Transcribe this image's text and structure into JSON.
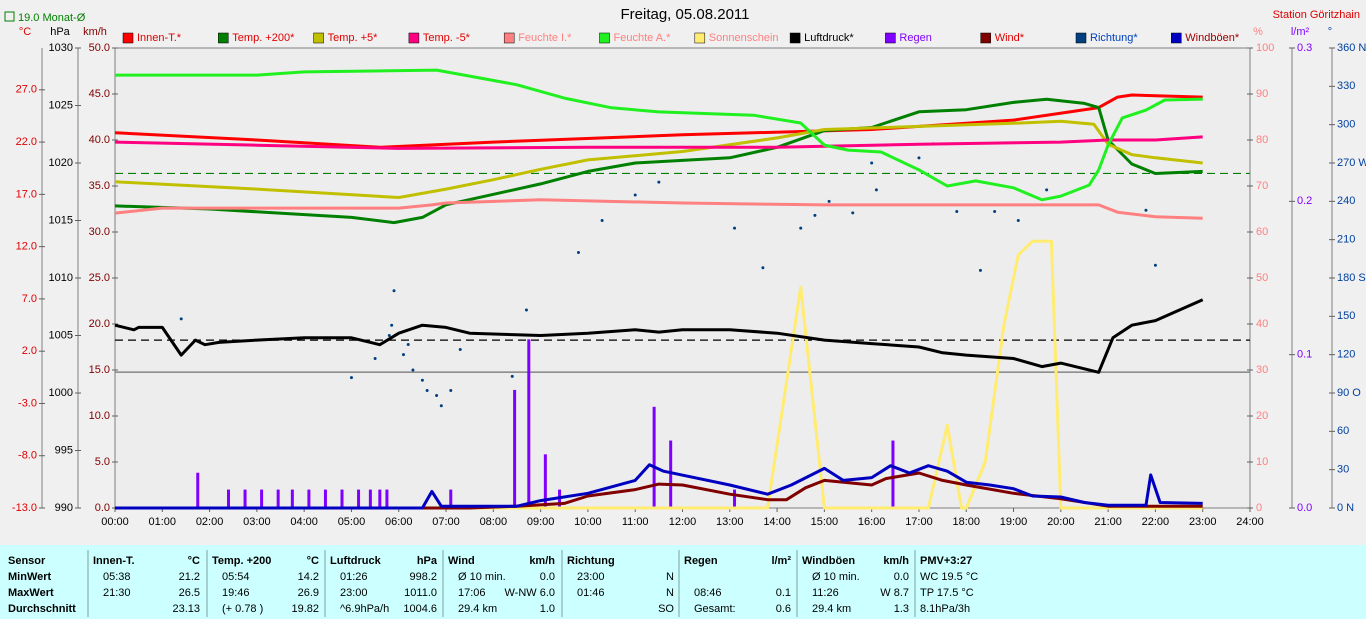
{
  "chart_data": {
    "type": "line",
    "title": "Freitag, 05.08.2011",
    "station": "Station Göritzhain",
    "xlim": [
      0,
      24
    ],
    "xticks": [
      {
        "value": 0,
        "label": "00:00"
      },
      {
        "value": 1,
        "label": "01:00"
      },
      {
        "value": 2,
        "label": "02:00"
      },
      {
        "value": 3,
        "label": "03:00"
      },
      {
        "value": 4,
        "label": "04:00"
      },
      {
        "value": 5,
        "label": "05:00"
      },
      {
        "value": 6,
        "label": "06:00"
      },
      {
        "value": 7,
        "label": "07:00"
      },
      {
        "value": 8,
        "label": "08:00"
      },
      {
        "value": 9,
        "label": "09:00"
      },
      {
        "value": 10,
        "label": "10:00"
      },
      {
        "value": 11,
        "label": "11:00"
      },
      {
        "value": 12,
        "label": "12:00"
      },
      {
        "value": 13,
        "label": "13:00"
      },
      {
        "value": 14,
        "label": "14:00"
      },
      {
        "value": 15,
        "label": "15:00"
      },
      {
        "value": 16,
        "label": "16:00"
      },
      {
        "value": 17,
        "label": "17:00"
      },
      {
        "value": 18,
        "label": "18:00"
      },
      {
        "value": 19,
        "label": "19:00"
      },
      {
        "value": 20,
        "label": "20:00"
      },
      {
        "value": 21,
        "label": "21:00"
      },
      {
        "value": 22,
        "label": "22:00"
      },
      {
        "value": 23,
        "label": "23:00"
      },
      {
        "value": 24,
        "label": "24:00"
      }
    ],
    "axes": [
      {
        "id": "temp",
        "label": "°C",
        "color": "#e00000",
        "lim": [
          -13,
          31
        ],
        "ticks": [
          {
            "value": -13,
            "label": "-13.0"
          },
          {
            "value": -8,
            "label": "-8.0"
          },
          {
            "value": -3,
            "label": "-3.0"
          },
          {
            "value": 2,
            "label": "2.0"
          },
          {
            "value": 7,
            "label": "7.0"
          },
          {
            "value": 12,
            "label": "12.0"
          },
          {
            "value": 17,
            "label": "17.0"
          },
          {
            "value": 22,
            "label": "22.0"
          },
          {
            "value": 27,
            "label": "27.0"
          }
        ]
      },
      {
        "id": "press",
        "label": "hPa",
        "color": "#000000",
        "lim": [
          990,
          1030
        ],
        "ticks": [
          990,
          995,
          1000,
          1005,
          1010,
          1015,
          1020,
          1025,
          1030
        ]
      },
      {
        "id": "wind",
        "label": "km/h",
        "color": "#800000",
        "lim": [
          0,
          50
        ],
        "ticks": [
          {
            "value": 0,
            "label": "0.0"
          },
          {
            "value": 5,
            "label": "5.0"
          },
          {
            "value": 10,
            "label": "10.0"
          },
          {
            "value": 15,
            "label": "15.0"
          },
          {
            "value": 20,
            "label": "20.0"
          },
          {
            "value": 25,
            "label": "25.0"
          },
          {
            "value": 30,
            "label": "30.0"
          },
          {
            "value": 35,
            "label": "35.0"
          },
          {
            "value": 40,
            "label": "40.0"
          },
          {
            "value": 45,
            "label": "45.0"
          },
          {
            "value": 50,
            "label": "50.0"
          }
        ]
      },
      {
        "id": "pct",
        "label": "%",
        "color": "#ff8080",
        "lim": [
          0,
          100
        ],
        "ticks": [
          0,
          10,
          20,
          30,
          40,
          50,
          60,
          70,
          80,
          90,
          100
        ]
      },
      {
        "id": "rain",
        "label": "l/m²",
        "color": "#8000ff",
        "lim": [
          0,
          0.3
        ],
        "ticks": [
          {
            "value": 0,
            "label": "0.0"
          },
          0.1,
          0.2,
          0.3
        ]
      },
      {
        "id": "dir",
        "label": "°",
        "color": "#0040a0",
        "lim": [
          0,
          360
        ],
        "ticks": [
          {
            "value": 0,
            "label": "0 N"
          },
          30,
          60,
          {
            "value": 90,
            "label": "90 O"
          },
          120,
          150,
          {
            "value": 180,
            "label": "180 S"
          },
          210,
          240,
          {
            "value": 270,
            "label": "270 W"
          },
          300,
          330,
          {
            "value": 360,
            "label": "360 N"
          }
        ]
      }
    ],
    "reference_lines": [
      {
        "value": 19.0,
        "axis": "temp",
        "color": "#008000",
        "dash": true,
        "label": "19.0 Monat-Ø"
      },
      {
        "value": 1004.6,
        "axis": "press",
        "color": "#000000",
        "dash": true
      },
      {
        "value": 0,
        "axis": "temp",
        "color": "#707070",
        "dash": false
      }
    ],
    "series": [
      {
        "name": "Innen-T.*",
        "type": "line",
        "axis": "temp",
        "color": "#ff0000",
        "label_color": "#e00000",
        "x": [
          0,
          3,
          5.6,
          8,
          12,
          16,
          19,
          20.8,
          21.2,
          21.5,
          23
        ],
        "values": [
          22.9,
          22.2,
          21.5,
          22.0,
          22.7,
          23.2,
          24.1,
          25.3,
          26.3,
          26.5,
          26.3
        ]
      },
      {
        "name": "Temp. +200*",
        "type": "line",
        "axis": "temp",
        "color": "#008000",
        "label_color": "#e00000",
        "x": [
          0,
          2,
          5,
          5.9,
          6.5,
          7,
          9,
          10,
          11,
          13,
          14,
          15,
          16,
          17,
          18,
          19,
          19.7,
          20.5,
          20.8,
          21,
          21.5,
          22,
          23
        ],
        "values": [
          15.9,
          15.6,
          14.8,
          14.3,
          14.8,
          16.0,
          18.0,
          19.2,
          20.0,
          20.5,
          21.5,
          23.1,
          23.4,
          24.9,
          25.1,
          25.8,
          26.1,
          25.7,
          25.3,
          22.2,
          19.9,
          19.0,
          19.2
        ]
      },
      {
        "name": "Temp. +5*",
        "type": "line",
        "axis": "temp",
        "color": "#c0c000",
        "label_color": "#e00000",
        "x": [
          0,
          3,
          6,
          7,
          8,
          9,
          10,
          12,
          14,
          15,
          17,
          19,
          20,
          20.7,
          21,
          21.5,
          22,
          23
        ],
        "values": [
          18.2,
          17.5,
          16.7,
          17.5,
          18.4,
          19.4,
          20.3,
          21.1,
          22.4,
          23.2,
          23.5,
          23.8,
          24.0,
          23.7,
          21.8,
          20.8,
          20.5,
          20.0
        ]
      },
      {
        "name": "Temp. -5*",
        "type": "line",
        "axis": "temp",
        "color": "#ff0080",
        "label_color": "#e00000",
        "x": [
          0,
          3,
          6,
          10,
          14,
          17,
          20,
          21,
          22,
          23
        ],
        "values": [
          22.0,
          21.7,
          21.4,
          21.5,
          21.5,
          21.8,
          22.0,
          22.2,
          22.2,
          22.5
        ]
      },
      {
        "name": "Feuchte I.*",
        "type": "line",
        "axis": "pct",
        "color": "#ff8080",
        "label_color": "#ff8080",
        "x": [
          0,
          1,
          6,
          6.7,
          7,
          9,
          12,
          15,
          18,
          20.8,
          21.2,
          22,
          23
        ],
        "values": [
          64.1,
          65.2,
          65.2,
          65.9,
          66.3,
          67.0,
          66.3,
          65.9,
          65.9,
          65.9,
          64.3,
          63.3,
          63.0
        ]
      },
      {
        "name": "Feuchte A.*",
        "type": "line",
        "axis": "pct",
        "color": "#20f020",
        "label_color": "#ff8080",
        "x": [
          0,
          3,
          4,
          6.8,
          7.5,
          8.5,
          9.5,
          10.5,
          11.5,
          13.5,
          14.5,
          15,
          15.5,
          16.2,
          17,
          17.6,
          18.2,
          19,
          19.6,
          20,
          20.6,
          20.8,
          21,
          21.3,
          21.8,
          22.2,
          23
        ],
        "values": [
          94.1,
          94.1,
          94.8,
          95.2,
          93.9,
          92.0,
          89.1,
          87.0,
          86.1,
          85.4,
          83.7,
          78.9,
          77.8,
          77.4,
          73.5,
          70.0,
          71.1,
          69.6,
          67.0,
          67.8,
          70.2,
          73.5,
          78.9,
          84.8,
          86.5,
          88.7,
          88.9
        ]
      },
      {
        "name": "Sonnenschein",
        "type": "line",
        "axis": "pct",
        "color": "#ffec70",
        "label_color": "#ff8080",
        "x": [
          0,
          13.8,
          14.5,
          15,
          17.2,
          17.6,
          17.9,
          18,
          18.4,
          18.8,
          19.1,
          19.4,
          19.8,
          20,
          23
        ],
        "values": [
          0,
          0,
          48,
          0,
          0,
          18,
          0,
          0,
          10,
          40,
          55,
          58,
          58,
          0,
          0
        ]
      },
      {
        "name": "Luftdruck*",
        "type": "line",
        "axis": "press",
        "color": "#000000",
        "label_color": "#000000",
        "x": [
          0,
          0.4,
          0.5,
          1,
          1.4,
          1.7,
          1.9,
          2.2,
          3,
          4,
          5,
          5.6,
          6,
          6.5,
          7,
          7.5,
          9,
          10,
          11,
          11.5,
          12,
          13,
          14,
          15,
          16,
          17,
          17.5,
          18,
          19,
          19.6,
          20,
          20.8,
          21.1,
          21.5,
          22,
          23
        ],
        "values": [
          1005.9,
          1005.5,
          1005.7,
          1005.7,
          1003.3,
          1004.6,
          1004.2,
          1004.4,
          1004.6,
          1004.8,
          1004.8,
          1004.2,
          1005.2,
          1005.9,
          1005.7,
          1005.2,
          1005.0,
          1005.2,
          1005.5,
          1005.3,
          1005.5,
          1005.5,
          1005.2,
          1004.6,
          1004.3,
          1004.0,
          1003.5,
          1003.3,
          1003.0,
          1002.3,
          1002.6,
          1001.8,
          1004.8,
          1005.9,
          1006.3,
          1008.1
        ]
      },
      {
        "name": "Regen",
        "type": "bar",
        "axis": "rain",
        "color": "#8000ff",
        "label_color": "#8000ff",
        "x": [
          1.75,
          2.4,
          2.75,
          3.1,
          3.45,
          3.75,
          4.1,
          4.45,
          4.8,
          5.15,
          5.4,
          5.6,
          5.75,
          7.1,
          8.45,
          8.75,
          9.1,
          9.4,
          11.4,
          11.75,
          13.1,
          16.45
        ],
        "values": [
          0.023,
          0.012,
          0.012,
          0.012,
          0.012,
          0.012,
          0.012,
          0.012,
          0.012,
          0.012,
          0.012,
          0.012,
          0.012,
          0.012,
          0.077,
          0.11,
          0.035,
          0.012,
          0.066,
          0.044,
          0.012,
          0.044
        ]
      },
      {
        "name": "Wind*",
        "type": "line",
        "axis": "wind",
        "color": "#800000",
        "label_color": "#e00000",
        "x": [
          0,
          7.5,
          8.5,
          9.5,
          10,
          11,
          11.5,
          12,
          13,
          13.8,
          14.2,
          14.6,
          15,
          16,
          16.3,
          17,
          17.5,
          18,
          19,
          20,
          21,
          22,
          23
        ],
        "values": [
          0,
          0,
          0.2,
          0.5,
          1.3,
          2.0,
          2.6,
          2.5,
          1.5,
          0.9,
          0.9,
          2.2,
          3.0,
          2.5,
          3.2,
          3.8,
          3.0,
          2.5,
          1.6,
          1.0,
          0.2,
          0.2,
          0.2
        ]
      },
      {
        "name": "Richtung*",
        "type": "scatter",
        "axis": "dir",
        "color": "#004080",
        "label_color": "#0040c0",
        "x": [
          1.4,
          5.9,
          5.85,
          5.8,
          5.5,
          5.0,
          6.1,
          6.3,
          6.5,
          6.6,
          6.8,
          6.9,
          7.1,
          7.3,
          6.2,
          8.4,
          8.7,
          9.8,
          10.3,
          11.0,
          11.5,
          13.1,
          13.7,
          14.5,
          14.8,
          15.1,
          15.6,
          16.0,
          16.1,
          17.0,
          17.3,
          17.8,
          18.3,
          18.6,
          19.1,
          19.7,
          21.8,
          22.0
        ],
        "values": [
          148,
          170,
          143,
          135,
          117,
          102,
          120,
          108,
          100,
          92,
          88,
          80,
          92,
          124,
          128,
          103,
          155,
          200,
          225,
          245,
          255,
          219,
          188,
          219,
          229,
          240,
          231,
          270,
          249,
          274,
          285,
          232,
          186,
          232,
          225,
          249,
          233,
          190
        ]
      },
      {
        "name": "Windböen*",
        "type": "line",
        "axis": "wind",
        "color": "#0000c0",
        "label_color": "#a00000",
        "x": [
          0,
          6.5,
          6.7,
          6.9,
          8.5,
          9,
          10,
          11,
          11.3,
          11.6,
          13,
          13.8,
          14.3,
          15,
          15.4,
          16,
          16.4,
          16.8,
          17.2,
          17.6,
          18,
          18.5,
          19,
          19.4,
          20,
          20.5,
          21,
          21.8,
          21.9,
          22.1,
          23
        ],
        "values": [
          0,
          0,
          1.8,
          0.2,
          0.2,
          0.8,
          1.6,
          3.0,
          4.7,
          4.0,
          2.5,
          1.5,
          2.5,
          4.3,
          3.0,
          3.3,
          4.6,
          3.8,
          4.6,
          4.0,
          2.8,
          2.5,
          2.1,
          1.3,
          1.2,
          0.6,
          0.3,
          0.3,
          3.6,
          0.6,
          0.5
        ]
      }
    ]
  },
  "stats_table": {
    "corner": "Sensor",
    "row_labels": [
      "MinWert",
      "MaxWert",
      "Durchschnitt"
    ],
    "columns": [
      {
        "name": "Innen-T.",
        "unit": "°C",
        "rows": [
          [
            "05:38",
            "21.2"
          ],
          [
            "21:30",
            "26.5"
          ],
          [
            null,
            "23.13"
          ]
        ]
      },
      {
        "name": "Temp. +200",
        "unit": "°C",
        "rows": [
          [
            "05:54",
            "14.2"
          ],
          [
            "19:46",
            "26.9"
          ],
          [
            "(+ 0.78 )",
            "19.82"
          ]
        ]
      },
      {
        "name": "Luftdruck",
        "unit": "hPa",
        "rows": [
          [
            "01:26",
            "998.2"
          ],
          [
            "23:00",
            "1011.0"
          ],
          [
            "^6.9hPa/h",
            "1004.6"
          ]
        ]
      },
      {
        "name": "Wind",
        "unit": "km/h",
        "rows": [
          [
            "Ø 10 min.",
            "0.0"
          ],
          [
            "17:06",
            "W-NW 6.0"
          ],
          [
            "29.4 km",
            "1.0"
          ]
        ]
      },
      {
        "name": "Richtung",
        "rows": [
          [
            "23:00",
            "N"
          ],
          [
            "01:46",
            "N"
          ],
          [
            null,
            "SO"
          ]
        ]
      },
      {
        "name": "Regen",
        "unit": "l/m²",
        "rows": [
          [
            null,
            null
          ],
          [
            "08:46",
            "0.1"
          ],
          [
            "Gesamt:",
            "0.6"
          ]
        ]
      },
      {
        "name": "Windböen",
        "unit": "km/h",
        "rows": [
          [
            "Ø 10 min.",
            "0.0"
          ],
          [
            "11:26",
            "W 8.7"
          ],
          [
            "29.4 km",
            "1.3"
          ]
        ]
      },
      {
        "name": "PMV+3:27",
        "rows": [
          [
            "WC 19.5 °C"
          ],
          [
            "TP 17.5 °C"
          ],
          [
            "8.1hPa/3h"
          ]
        ]
      }
    ]
  }
}
